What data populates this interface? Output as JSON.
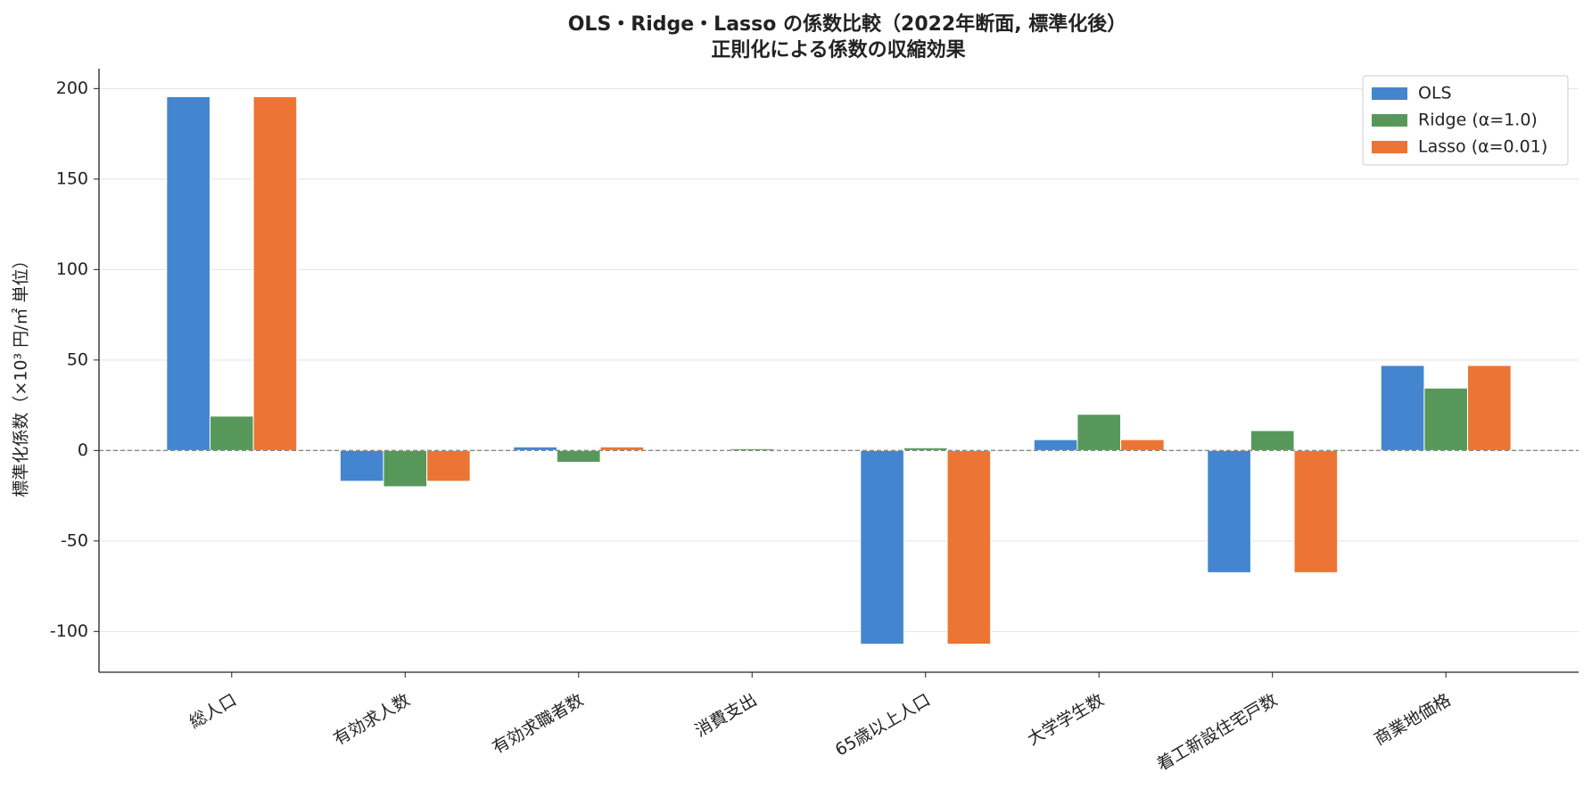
{
  "chart_data": {
    "type": "bar",
    "title": "OLS・Ridge・Lasso の係数比較（2022年断面, 標準化後）",
    "subtitle": "正則化による係数の収縮効果",
    "y_label": "標準化係数（×10³ 円/㎡ 単位）",
    "categories": [
      "総人口",
      "有効求人数",
      "有効求職者数",
      "消費支出",
      "65歳以上人口",
      "大学学生数",
      "着工新設住宅戸数",
      "商業地価格"
    ],
    "series": [
      {
        "name": "OLS",
        "color": "#4485cf",
        "values": [
          195.5,
          -17,
          2,
          0.3,
          -107,
          6,
          -67.5,
          47
        ]
      },
      {
        "name": "Ridge (α=1.0)",
        "color": "#57985a",
        "values": [
          19,
          -20,
          -6.5,
          1,
          1.5,
          20,
          11,
          34.5
        ]
      },
      {
        "name": "Lasso (α=0.01)",
        "color": "#ec7535",
        "values": [
          195.5,
          -17,
          2,
          0.3,
          -107,
          6,
          -67.5,
          47
        ]
      }
    ],
    "ylim": [
      -122.5,
      211
    ],
    "yticks": [
      -100,
      -50,
      0,
      50,
      100,
      150,
      200
    ],
    "grid": true,
    "legend": "upper right"
  }
}
